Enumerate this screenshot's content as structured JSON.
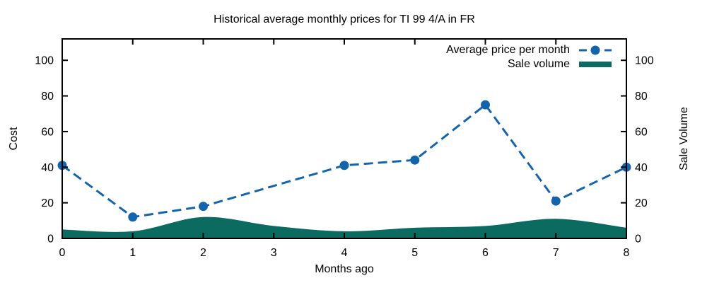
{
  "title": "Historical average monthly prices for TI 99 4/A in FR",
  "axes": {
    "xlabel": "Months ago",
    "ylabel_left": "Cost",
    "ylabel_right": "Sale Volume",
    "x_tick_labels": [
      "0",
      "1",
      "2",
      "3",
      "4",
      "5",
      "6",
      "7",
      "8"
    ],
    "y_tick_labels": [
      "0",
      "20",
      "40",
      "60",
      "80",
      "100"
    ]
  },
  "legend": {
    "price_label": "Average price per month",
    "volume_label": "Sale volume"
  },
  "colors": {
    "price_line": "#1464ac",
    "volume_fill": "#0c6b61",
    "axis": "#000000",
    "text": "#000000",
    "background": "#ffffff"
  },
  "chart_data": {
    "type": "line",
    "title": "Historical average monthly prices for TI 99 4/A in FR",
    "xlabel": "Months ago",
    "ylabel": "Cost",
    "y2label": "Sale Volume",
    "xlim": [
      0,
      8
    ],
    "ylim": [
      0,
      112
    ],
    "y2lim": [
      0,
      112
    ],
    "xticks": [
      0,
      1,
      2,
      3,
      4,
      5,
      6,
      7,
      8
    ],
    "yticks": [
      0,
      20,
      40,
      60,
      80,
      100
    ],
    "grid": false,
    "legend_position": "top-right-inside",
    "series": [
      {
        "name": "Average price per month",
        "type": "line",
        "style": "dashed-with-circle-markers",
        "axis": "left",
        "color": "#1464ac",
        "x": [
          0,
          1,
          2,
          4,
          5,
          6,
          7,
          8
        ],
        "y": [
          41,
          12,
          18,
          41,
          44,
          75,
          21,
          40
        ],
        "note": "no data point at month 3; line connects month 2 to month 4"
      },
      {
        "name": "Sale volume",
        "type": "area",
        "style": "smooth-filled-area",
        "axis": "right",
        "color": "#0c6b61",
        "x": [
          0,
          1,
          2,
          3,
          4,
          5,
          6,
          7,
          8
        ],
        "y": [
          5,
          4,
          12,
          7,
          4,
          6,
          7,
          11,
          6
        ]
      }
    ]
  }
}
